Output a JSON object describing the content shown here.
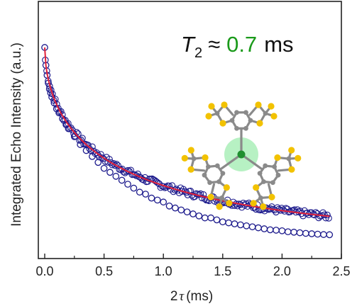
{
  "chart_data": {
    "type": "scatter",
    "title": "",
    "xlabel": "2τ (ms)",
    "xlabel_parts": [
      "2",
      "τ",
      "(ms)"
    ],
    "ylabel": "Integrated Echo Intensity (a.u.)",
    "xlim": [
      -0.05,
      2.5
    ],
    "ylim": [
      0,
      1.0
    ],
    "x_ticks": [
      "0.0",
      "0.5",
      "1.0",
      "1.5",
      "2.0",
      "2.5"
    ],
    "x_tick_values": [
      0.0,
      0.5,
      1.0,
      1.5,
      2.0,
      2.5
    ],
    "grid": false,
    "annotation": {
      "symbol": "T",
      "subscript": "2",
      "relation": "≈",
      "value": "0.7",
      "unit": "ms",
      "value_color": "#1a9a1a"
    },
    "fit_curve": {
      "model": "stretched_exponential",
      "amplitude": 0.99,
      "t2_ms": 0.7,
      "beta": 0.55,
      "baseline": 0.0,
      "color": "#e0203a"
    },
    "series": [
      {
        "marker": "open_circle",
        "color": "#1c1a8c",
        "x": [
          0.0,
          0.01,
          0.02,
          0.03,
          0.04,
          0.05,
          0.06,
          0.08,
          0.1,
          0.12,
          0.15,
          0.18,
          0.2,
          0.25,
          0.3,
          0.35,
          0.4,
          0.45,
          0.5,
          0.55,
          0.6,
          0.65,
          0.7,
          0.75,
          0.8,
          0.85,
          0.9,
          0.95,
          1.0,
          1.05,
          1.1,
          1.15,
          1.2,
          1.25,
          1.3,
          1.35,
          1.4,
          1.45,
          1.5,
          1.55,
          1.6,
          1.65,
          1.7,
          1.75,
          1.8,
          1.85,
          1.9,
          1.95,
          2.0,
          2.05,
          2.1,
          2.15,
          2.2,
          2.25,
          2.3,
          2.35,
          2.4
        ],
        "y": [
          0.99,
          0.9,
          0.85,
          0.81,
          0.78,
          0.76,
          0.74,
          0.71,
          0.68,
          0.66,
          0.63,
          0.6,
          0.58,
          0.54,
          0.5,
          0.47,
          0.44,
          0.41,
          0.38,
          0.36,
          0.34,
          0.32,
          0.3,
          0.28,
          0.26,
          0.25,
          0.23,
          0.22,
          0.21,
          0.19,
          0.18,
          0.17,
          0.16,
          0.15,
          0.14,
          0.13,
          0.13,
          0.12,
          0.11,
          0.105,
          0.1,
          0.095,
          0.09,
          0.085,
          0.08,
          0.075,
          0.07,
          0.068,
          0.065,
          0.06,
          0.058,
          0.055,
          0.052,
          0.05,
          0.048,
          0.046,
          0.045
        ]
      }
    ]
  },
  "colors": {
    "axis": "#222222",
    "molecule_bond": "#8a8a8a",
    "molecule_carbon": "#8a8a8a",
    "molecule_sulfur": "#f2c200",
    "molecule_center": "#1f8f2f",
    "molecule_glow": "#5fe07a"
  },
  "icons": {
    "molecule": "triarylmethyl-radical-molecule-icon"
  }
}
